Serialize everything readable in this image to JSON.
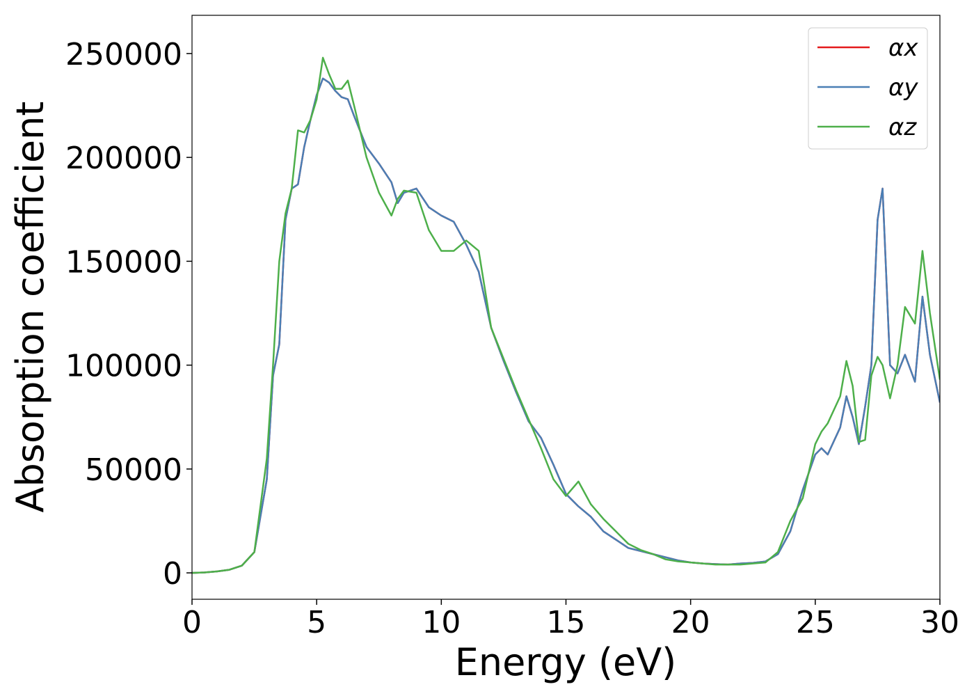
{
  "chart_data": {
    "type": "line",
    "xlabel": "Energy (eV)",
    "ylabel": "Absorption coefficient",
    "x": [
      0,
      0.5,
      1,
      1.5,
      2,
      2.5,
      3,
      3.25,
      3.5,
      3.75,
      4,
      4.25,
      4.5,
      4.75,
      5,
      5.25,
      5.5,
      5.75,
      6,
      6.25,
      6.5,
      7,
      7.5,
      8,
      8.25,
      8.5,
      9,
      9.5,
      10,
      10.5,
      11,
      11.5,
      12,
      12.5,
      13,
      13.5,
      14,
      14.5,
      15,
      15.5,
      16,
      16.5,
      17,
      17.5,
      18,
      18.5,
      19,
      19.5,
      20,
      20.5,
      21,
      21.5,
      22,
      22.5,
      23,
      23.5,
      24,
      24.5,
      25,
      25.25,
      25.5,
      26,
      26.25,
      26.5,
      26.75,
      27,
      27.25,
      27.5,
      27.7,
      28,
      28.3,
      28.6,
      29,
      29.3,
      29.6,
      30
    ],
    "series": [
      {
        "name": "αx",
        "color": "#e41a1c",
        "values": [
          0,
          200,
          700,
          1500,
          3500,
          10000,
          45000,
          95000,
          110000,
          170000,
          185000,
          187000,
          205000,
          218000,
          230000,
          238000,
          236000,
          232000,
          229000,
          228000,
          220000,
          205000,
          197000,
          188000,
          178000,
          183000,
          185000,
          176000,
          172000,
          169000,
          158000,
          145000,
          118000,
          102000,
          87000,
          73000,
          65000,
          52000,
          38000,
          32000,
          27000,
          20000,
          16000,
          12000,
          10500,
          9000,
          7500,
          6000,
          5000,
          4500,
          4200,
          4000,
          4500,
          4800,
          5500,
          9000,
          20000,
          40000,
          57000,
          60000,
          57000,
          70000,
          85000,
          75000,
          62000,
          80000,
          100000,
          170000,
          185000,
          100000,
          96000,
          105000,
          92000,
          133000,
          105000,
          82000
        ]
      },
      {
        "name": "αy",
        "color": "#4a7fb5",
        "values": [
          0,
          200,
          700,
          1500,
          3500,
          10000,
          45000,
          95000,
          110000,
          170000,
          185000,
          187000,
          205000,
          218000,
          230000,
          238000,
          236000,
          232000,
          229000,
          228000,
          220000,
          205000,
          197000,
          188000,
          178000,
          183000,
          185000,
          176000,
          172000,
          169000,
          158000,
          145000,
          118000,
          102000,
          87000,
          73000,
          65000,
          52000,
          38000,
          32000,
          27000,
          20000,
          16000,
          12000,
          10500,
          9000,
          7500,
          6000,
          5000,
          4500,
          4200,
          4000,
          4500,
          4800,
          5500,
          9000,
          20000,
          40000,
          57000,
          60000,
          57000,
          70000,
          85000,
          75000,
          62000,
          80000,
          100000,
          170000,
          185000,
          100000,
          96000,
          105000,
          92000,
          133000,
          105000,
          82000
        ]
      },
      {
        "name": "αz",
        "color": "#4daf4a",
        "values": [
          0,
          200,
          700,
          1500,
          3500,
          10000,
          55000,
          100000,
          150000,
          173000,
          185000,
          213000,
          212000,
          218000,
          228000,
          248000,
          240000,
          233000,
          233000,
          237000,
          225000,
          200000,
          183000,
          172000,
          180000,
          184000,
          183000,
          165000,
          155000,
          155000,
          160000,
          155000,
          118000,
          103000,
          88000,
          74000,
          60000,
          45000,
          37000,
          44000,
          33000,
          26000,
          20000,
          14000,
          11000,
          9000,
          6500,
          5500,
          5000,
          4500,
          4000,
          4000,
          4000,
          4500,
          5000,
          10000,
          25000,
          36000,
          62000,
          68000,
          72000,
          85000,
          102000,
          90000,
          63000,
          64000,
          95000,
          104000,
          100000,
          84000,
          100000,
          128000,
          120000,
          155000,
          125000,
          93000
        ]
      }
    ],
    "xlim": [
      0,
      30
    ],
    "xticks": [
      0,
      5,
      10,
      15,
      20,
      25,
      30
    ],
    "ylim": [
      -12700,
      268400
    ],
    "yticks": [
      0,
      50000,
      100000,
      150000,
      200000,
      250000
    ],
    "grid": false,
    "legend": "upper right"
  }
}
